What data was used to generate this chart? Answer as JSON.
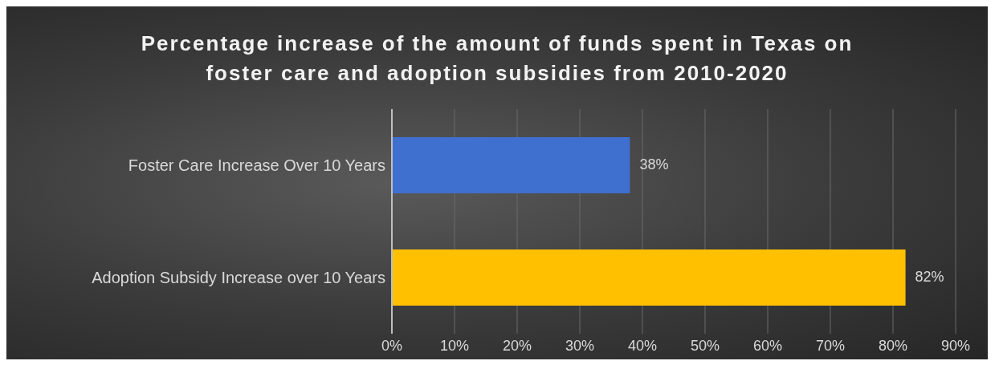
{
  "chart_data": {
    "type": "bar",
    "orientation": "horizontal",
    "title": "Percentage increase of the amount of funds spent in Texas on foster care and adoption subsidies from 2010-2020",
    "categories": [
      "Foster Care Increase Over 10 Years",
      "Adoption Subsidy Increase over 10 Years"
    ],
    "values": [
      38,
      82
    ],
    "colors": [
      "#3f6fcf",
      "#ffc000"
    ],
    "value_labels": [
      "38%",
      "82%"
    ],
    "xlim": [
      0,
      90
    ],
    "xticks": [
      {
        "value": 0,
        "label": "0%"
      },
      {
        "value": 10,
        "label": "10%"
      },
      {
        "value": 20,
        "label": "20%"
      },
      {
        "value": 30,
        "label": "30%"
      },
      {
        "value": 40,
        "label": "40%"
      },
      {
        "value": 50,
        "label": "50%"
      },
      {
        "value": 60,
        "label": "60%"
      },
      {
        "value": 70,
        "label": "70%"
      },
      {
        "value": 80,
        "label": "80%"
      },
      {
        "value": 90,
        "label": "90%"
      }
    ],
    "grid": "x"
  }
}
